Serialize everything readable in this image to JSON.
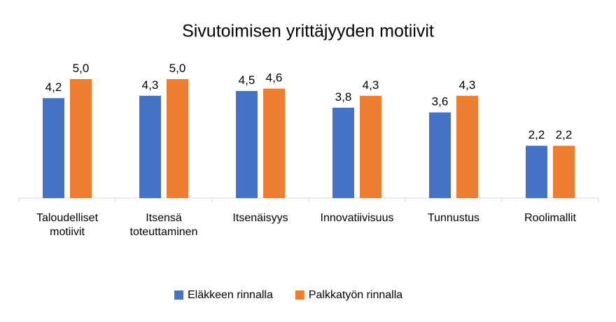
{
  "chart_data": {
    "type": "bar",
    "title": "Sivutoimisen yrittäjyyden motiivit",
    "categories": [
      "Taloudelliset\nmotiivit",
      "Itsensä\ntoteuttaminen",
      "Itsenäisyys",
      "Innovatiivisuus",
      "Tunnustus",
      "Roolimallit"
    ],
    "series": [
      {
        "name": "Eläkkeen rinnalla",
        "color": "#4472c4",
        "values": [
          4.2,
          4.3,
          4.5,
          3.8,
          3.6,
          2.2
        ],
        "value_labels": [
          "4,2",
          "4,3",
          "4,5",
          "3,8",
          "3,6",
          "2,2"
        ]
      },
      {
        "name": "Palkkatyön rinnalla",
        "color": "#ed7d31",
        "values": [
          5.0,
          5.0,
          4.6,
          4.3,
          4.3,
          2.2
        ],
        "value_labels": [
          "5,0",
          "5,0",
          "4,6",
          "4,3",
          "4,3",
          "2,2"
        ]
      }
    ]
  }
}
